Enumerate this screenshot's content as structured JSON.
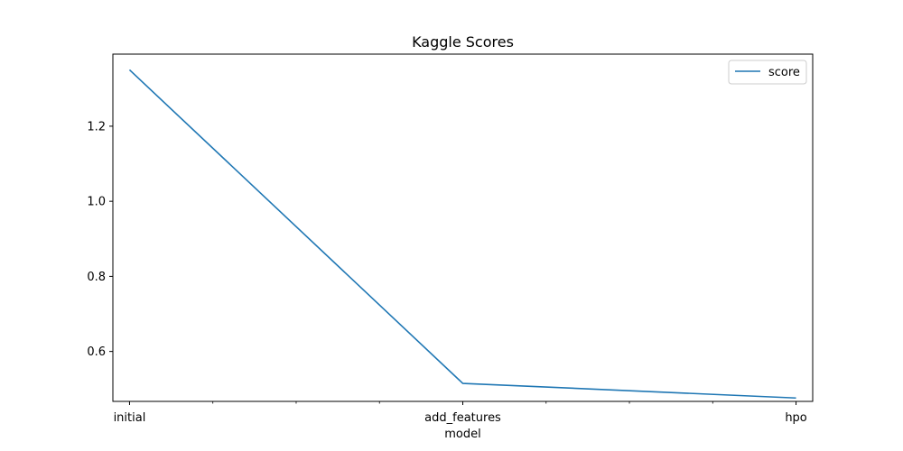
{
  "chart_data": {
    "type": "line",
    "title": "Kaggle Scores",
    "xlabel": "model",
    "ylabel": "",
    "categories": [
      "initial",
      "add_features",
      "hpo"
    ],
    "series": [
      {
        "name": "score",
        "values": [
          1.35,
          0.515,
          0.476
        ],
        "color": "#1f77b4"
      }
    ],
    "xlim": [
      -0.05,
      2.05
    ],
    "ylim": [
      0.467,
      1.392
    ],
    "yticks": [
      0.6,
      0.8,
      1.0,
      1.2
    ],
    "ytick_labels": [
      "0.6",
      "0.8",
      "1.0",
      "1.2"
    ],
    "minor_xticks": [
      0.25,
      0.5,
      0.75,
      1.25,
      1.5,
      1.75
    ],
    "grid": false,
    "legend_position": "top-right"
  }
}
